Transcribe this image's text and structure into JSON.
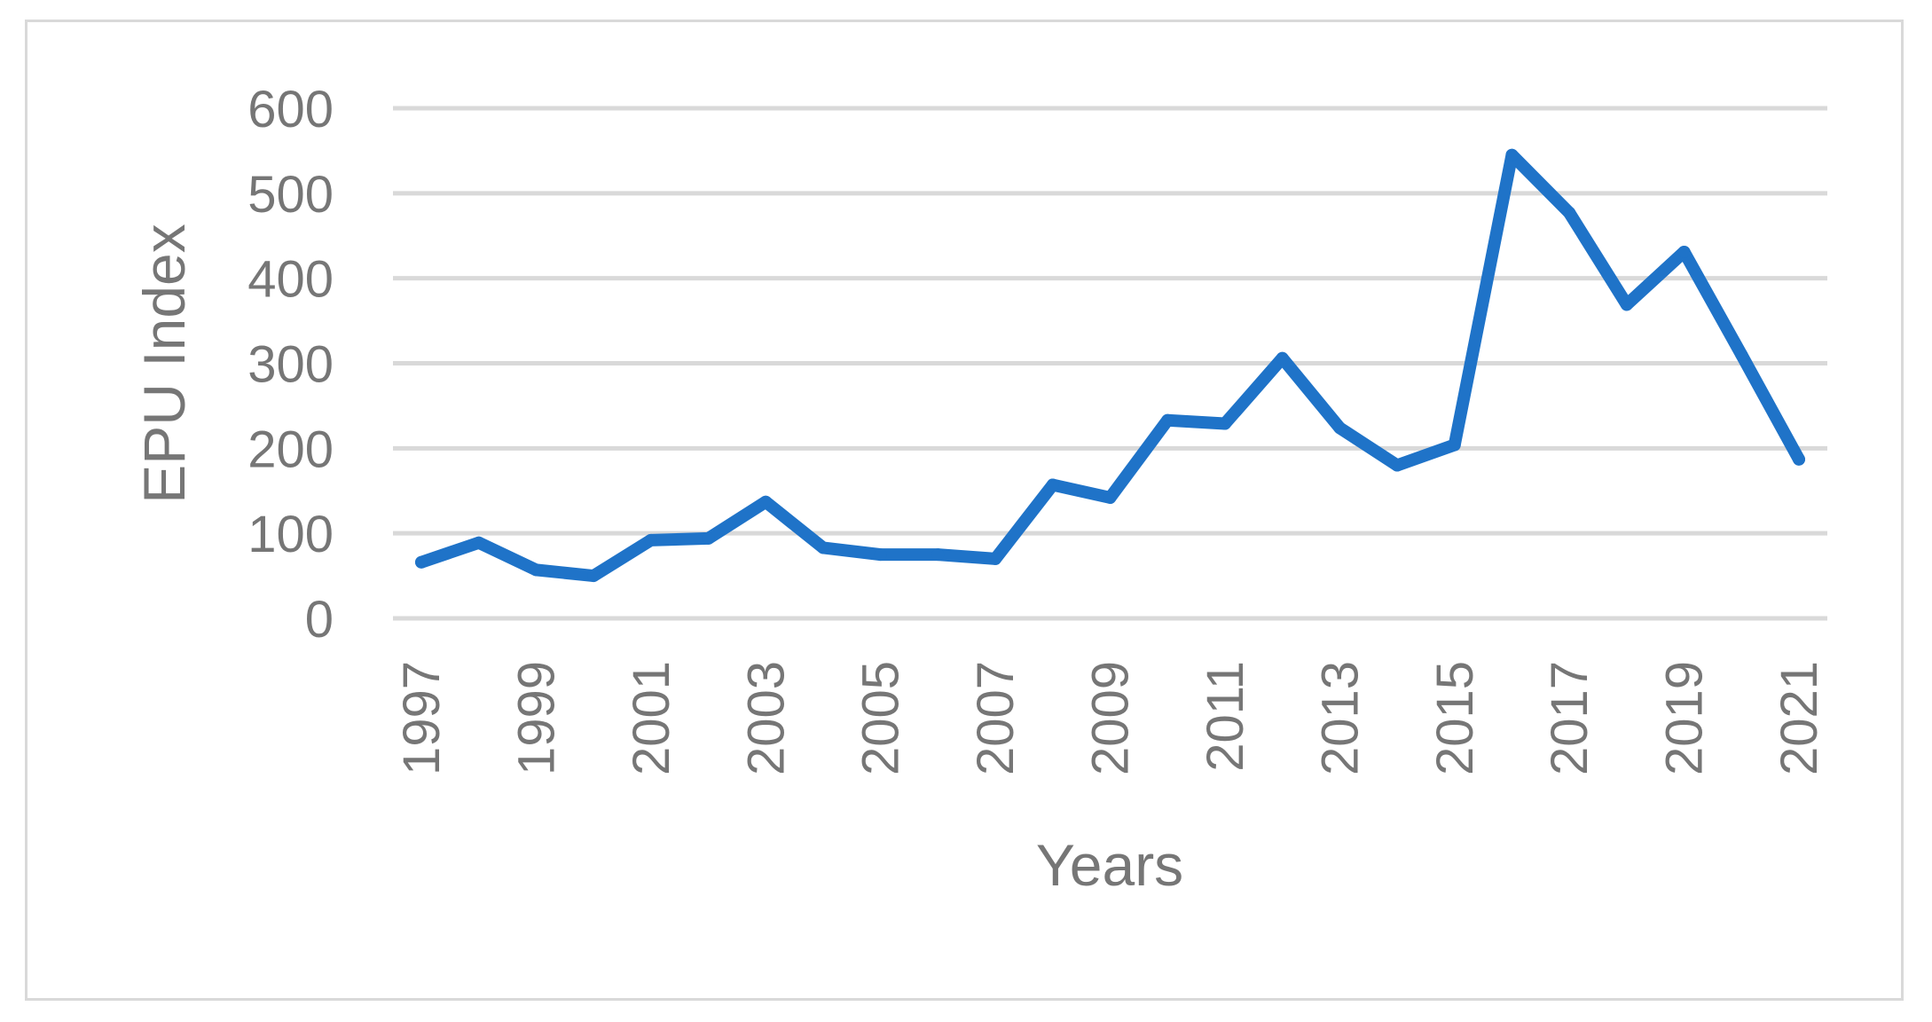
{
  "chart_data": {
    "type": "line",
    "title": "",
    "xlabel": "Years",
    "ylabel": "EPU Index",
    "x": [
      1997,
      1998,
      1999,
      2000,
      2001,
      2002,
      2003,
      2004,
      2005,
      2006,
      2007,
      2008,
      2009,
      2010,
      2011,
      2012,
      2013,
      2014,
      2015,
      2016,
      2017,
      2018,
      2019,
      2020,
      2021
    ],
    "series": [
      {
        "values": [
          66,
          89,
          57,
          50,
          92,
          94,
          137,
          83,
          75,
          75,
          70,
          157,
          142,
          233,
          229,
          306,
          224,
          180,
          204,
          545,
          477,
          369,
          431,
          310,
          187
        ]
      }
    ],
    "ylim": [
      0,
      600
    ],
    "yticks": [
      0,
      100,
      200,
      300,
      400,
      500,
      600
    ],
    "xtick_labels": [
      "1997",
      "1999",
      "2001",
      "2003",
      "2005",
      "2007",
      "2009",
      "2011",
      "2013",
      "2015",
      "2017",
      "2019",
      "2021"
    ],
    "grid": "horizontal",
    "legend": "none",
    "colors": {
      "line": "#1f73c8",
      "grid": "#d9d9d9",
      "text": "#767676"
    }
  }
}
